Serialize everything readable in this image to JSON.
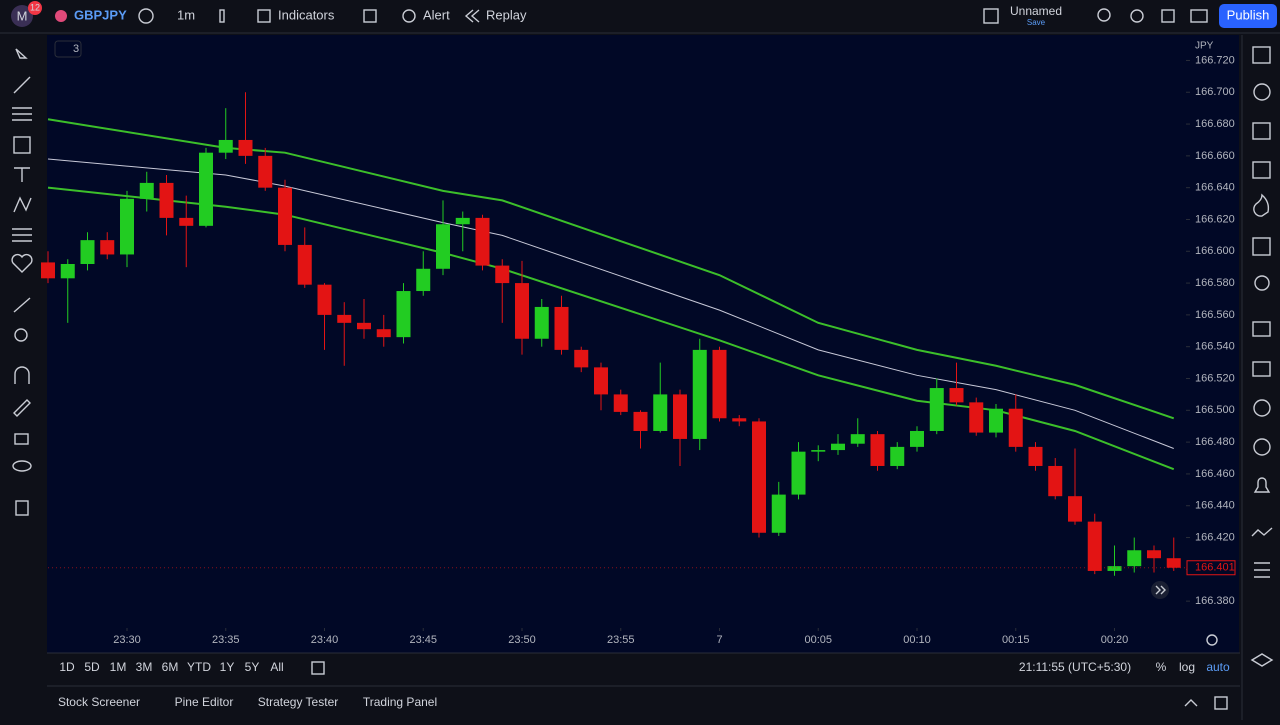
{
  "toolbar": {
    "avatar": "M",
    "badge": "12",
    "symbol": "GBPJPY",
    "interval": "1m",
    "indicators": "Indicators",
    "alert": "Alert",
    "replay": "Replay",
    "layout_name": "Unnamed",
    "save": "Save",
    "publish": "Publish"
  },
  "chart_data": {
    "type": "candlestick",
    "legend_toggle": "3",
    "currency": "JPY",
    "up_color": "#22cc22",
    "down_color": "#e31414",
    "x": [
      "23:26",
      "23:27",
      "23:28",
      "23:29",
      "23:30",
      "23:31",
      "23:32",
      "23:33",
      "23:34",
      "23:35",
      "23:36",
      "23:37",
      "23:38",
      "23:39",
      "23:40",
      "23:41",
      "23:42",
      "23:43",
      "23:44",
      "23:45",
      "23:46",
      "23:47",
      "23:48",
      "23:49",
      "23:50",
      "23:51",
      "23:52",
      "23:53",
      "23:54",
      "23:55",
      "23:56",
      "23:57",
      "23:58",
      "23:59",
      "00:00",
      "00:01",
      "00:02",
      "00:03",
      "00:04",
      "00:05",
      "00:06",
      "00:07",
      "00:08",
      "00:09",
      "00:10",
      "00:11",
      "00:12",
      "00:13",
      "00:14",
      "00:15",
      "00:16",
      "00:17",
      "00:18",
      "00:19",
      "00:20",
      "00:21",
      "00:22",
      "00:23"
    ],
    "open": [
      166.593,
      166.583,
      166.592,
      166.607,
      166.598,
      166.633,
      166.643,
      166.621,
      166.616,
      166.662,
      166.67,
      166.66,
      166.64,
      166.604,
      166.579,
      166.56,
      166.555,
      166.551,
      166.546,
      166.575,
      166.589,
      166.617,
      166.621,
      166.591,
      166.58,
      166.545,
      166.565,
      166.538,
      166.527,
      166.51,
      166.499,
      166.487,
      166.51,
      166.482,
      166.538,
      166.495,
      166.493,
      166.423,
      166.447,
      166.474,
      166.475,
      166.479,
      166.485,
      166.465,
      166.477,
      166.487,
      166.514,
      166.505,
      166.486,
      166.501,
      166.477,
      166.465,
      166.446,
      166.43,
      166.399,
      166.402,
      166.412,
      166.407
    ],
    "high": [
      166.6,
      166.595,
      166.612,
      166.612,
      166.638,
      166.65,
      166.648,
      166.635,
      166.665,
      166.69,
      166.7,
      166.665,
      166.645,
      166.615,
      166.58,
      166.568,
      166.57,
      166.56,
      166.58,
      166.6,
      166.632,
      166.625,
      166.623,
      166.595,
      166.594,
      166.57,
      166.572,
      166.54,
      166.53,
      166.513,
      166.5,
      166.53,
      166.513,
      166.545,
      166.54,
      166.497,
      166.495,
      166.455,
      166.48,
      166.478,
      166.485,
      166.495,
      166.487,
      166.48,
      166.49,
      166.52,
      166.53,
      166.508,
      166.504,
      166.51,
      166.48,
      166.47,
      166.476,
      166.435,
      166.415,
      166.42,
      166.415,
      166.42
    ],
    "low": [
      166.58,
      166.555,
      166.588,
      166.595,
      166.59,
      166.625,
      166.61,
      166.59,
      166.615,
      166.658,
      166.655,
      166.638,
      166.6,
      166.577,
      166.538,
      166.528,
      166.545,
      166.54,
      166.542,
      166.572,
      166.585,
      166.6,
      166.588,
      166.555,
      166.535,
      166.54,
      166.535,
      166.524,
      166.5,
      166.497,
      166.476,
      166.486,
      166.465,
      166.475,
      166.493,
      166.49,
      166.42,
      166.421,
      166.444,
      166.468,
      166.472,
      166.477,
      166.462,
      166.463,
      166.474,
      166.485,
      166.503,
      166.484,
      166.483,
      166.474,
      166.462,
      166.444,
      166.428,
      166.397,
      166.396,
      166.398,
      166.398,
      166.399
    ],
    "close": [
      166.583,
      166.592,
      166.607,
      166.598,
      166.633,
      166.643,
      166.621,
      166.616,
      166.662,
      166.67,
      166.66,
      166.64,
      166.604,
      166.579,
      166.56,
      166.555,
      166.551,
      166.546,
      166.575,
      166.589,
      166.617,
      166.621,
      166.591,
      166.58,
      166.545,
      166.565,
      166.538,
      166.527,
      166.51,
      166.499,
      166.487,
      166.51,
      166.482,
      166.538,
      166.495,
      166.493,
      166.423,
      166.447,
      166.474,
      166.475,
      166.479,
      166.485,
      166.465,
      166.477,
      166.487,
      166.514,
      166.505,
      166.486,
      166.501,
      166.477,
      166.465,
      166.446,
      166.43,
      166.399,
      166.402,
      166.412,
      166.407,
      166.401
    ],
    "series": [
      {
        "color": "#3cbf2a",
        "x": [
          "23:26",
          "23:35",
          "23:38",
          "23:46",
          "23:49",
          "00:00",
          "00:05",
          "00:10",
          "00:14",
          "00:18",
          "00:23"
        ],
        "values": [
          166.683,
          166.665,
          166.662,
          166.638,
          166.632,
          166.585,
          166.555,
          166.538,
          166.528,
          166.516,
          166.495
        ]
      },
      {
        "color": "#c8c9d8",
        "x": [
          "23:26",
          "23:35",
          "23:38",
          "23:46",
          "23:49",
          "00:00",
          "00:05",
          "00:10",
          "00:14",
          "00:18",
          "00:23"
        ],
        "values": [
          166.658,
          166.648,
          166.641,
          166.618,
          166.61,
          166.563,
          166.538,
          166.522,
          166.513,
          166.5,
          166.476
        ]
      },
      {
        "color": "#3cbf2a",
        "x": [
          "23:26",
          "23:35",
          "23:38",
          "23:46",
          "23:49",
          "00:00",
          "00:05",
          "00:10",
          "00:14",
          "00:18",
          "00:23"
        ],
        "values": [
          166.64,
          166.628,
          166.623,
          166.599,
          166.589,
          166.544,
          166.522,
          166.506,
          166.5,
          166.487,
          166.463
        ]
      }
    ],
    "last_price": 166.401,
    "ylim": [
      166.365,
      166.736
    ],
    "yticks": [
      {
        "value": 166.72,
        "label": "166.720"
      },
      {
        "value": 166.7,
        "label": "166.700"
      },
      {
        "value": 166.68,
        "label": "166.680"
      },
      {
        "value": 166.66,
        "label": "166.660"
      },
      {
        "value": 166.64,
        "label": "166.640"
      },
      {
        "value": 166.62,
        "label": "166.620"
      },
      {
        "value": 166.6,
        "label": "166.600"
      },
      {
        "value": 166.58,
        "label": "166.580"
      },
      {
        "value": 166.56,
        "label": "166.560"
      },
      {
        "value": 166.54,
        "label": "166.540"
      },
      {
        "value": 166.52,
        "label": "166.520"
      },
      {
        "value": 166.5,
        "label": "166.500"
      },
      {
        "value": 166.48,
        "label": "166.480"
      },
      {
        "value": 166.46,
        "label": "166.460"
      },
      {
        "value": 166.44,
        "label": "166.440"
      },
      {
        "value": 166.42,
        "label": "166.420"
      },
      {
        "value": 166.4,
        "label": "166.400"
      },
      {
        "value": 166.38,
        "label": "166.380"
      }
    ],
    "xticks": [
      "23:30",
      "23:35",
      "23:40",
      "23:45",
      "23:50",
      "23:55",
      {
        "value": "00:00",
        "label": "7"
      },
      "00:05",
      "00:10",
      "00:15",
      "00:20"
    ]
  },
  "range_bar": {
    "ranges": [
      "1D",
      "5D",
      "1M",
      "3M",
      "6M",
      "YTD",
      "1Y",
      "5Y",
      "All"
    ],
    "clock": "21:11:55 (UTC+5:30)",
    "percent": "%",
    "log": "log",
    "auto": "auto"
  },
  "tabs": [
    "Stock Screener",
    "Pine Editor",
    "Strategy Tester",
    "Trading Panel"
  ]
}
